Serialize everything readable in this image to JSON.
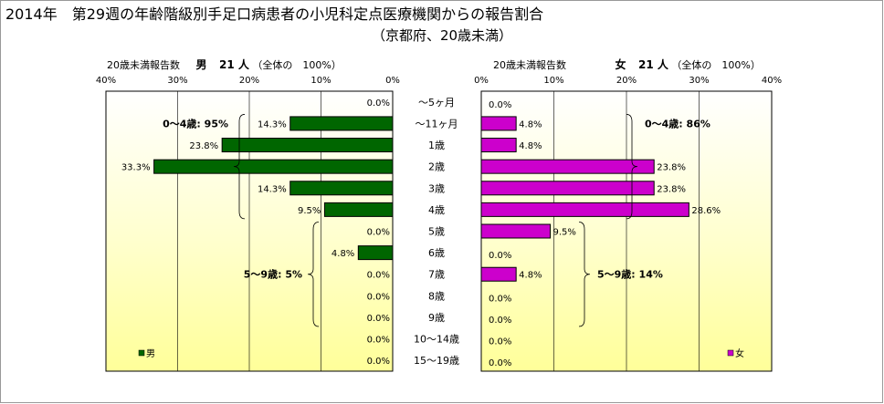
{
  "title": "2014年　第29週の年齢階級別手足口病患者の小児科定点医療機関からの報告割合",
  "subtitle": "（京都府、20歳未満）",
  "colors": {
    "male": "#006600",
    "female": "#cc00cc"
  },
  "left_panel": {
    "header_label": "20歳未満報告数",
    "sex": "男",
    "count_text": "21 人",
    "total_text": "（全体の　100%）"
  },
  "right_panel": {
    "header_label": "20歳未満報告数",
    "sex": "女",
    "count_text": "21 人",
    "total_text": "（全体の　100%）"
  },
  "chart_data": [
    {
      "type": "bar",
      "orientation": "horizontal",
      "direction": "right-to-left",
      "categories": [
        "～5ヶ月",
        "～11ヶ月",
        "1歳",
        "2歳",
        "3歳",
        "4歳",
        "5歳",
        "6歳",
        "7歳",
        "8歳",
        "9歳",
        "10～14歳",
        "15～19歳"
      ],
      "series": [
        {
          "name": "男",
          "values": [
            0.0,
            14.3,
            23.8,
            33.3,
            14.3,
            9.5,
            0.0,
            4.8,
            0.0,
            0.0,
            0.0,
            0.0,
            0.0
          ]
        }
      ],
      "value_labels": [
        "0.0%",
        "14.3%",
        "23.8%",
        "33.3%",
        "14.3%",
        "9.5%",
        "0.0%",
        "4.8%",
        "0.0%",
        "0.0%",
        "0.0%",
        "0.0%",
        "0.0%"
      ],
      "xlim": [
        0,
        40
      ],
      "tick_labels": [
        "40%",
        "30%",
        "20%",
        "10%",
        "0%"
      ],
      "grid": true,
      "legend": {
        "position": "bottom-left",
        "label": "男"
      },
      "annotations": [
        {
          "text": "0～4歳: 95%",
          "bracket_rows": [
            1,
            5
          ]
        },
        {
          "text": "5～9歳: 5%",
          "bracket_rows": [
            6,
            10
          ]
        }
      ]
    },
    {
      "type": "bar",
      "orientation": "horizontal",
      "direction": "left-to-right",
      "categories": [
        "～5ヶ月",
        "～11ヶ月",
        "1歳",
        "2歳",
        "3歳",
        "4歳",
        "5歳",
        "6歳",
        "7歳",
        "8歳",
        "9歳",
        "10～14歳",
        "15～19歳"
      ],
      "series": [
        {
          "name": "女",
          "values": [
            0.0,
            4.8,
            4.8,
            23.8,
            23.8,
            28.6,
            9.5,
            0.0,
            4.8,
            0.0,
            0.0,
            0.0,
            0.0
          ]
        }
      ],
      "value_labels": [
        "0.0%",
        "4.8%",
        "4.8%",
        "23.8%",
        "23.8%",
        "28.6%",
        "9.5%",
        "0.0%",
        "4.8%",
        "0.0%",
        "0.0%",
        "0.0%",
        "0.0%"
      ],
      "xlim": [
        0,
        40
      ],
      "tick_labels": [
        "0%",
        "10%",
        "20%",
        "30%",
        "40%"
      ],
      "grid": true,
      "legend": {
        "position": "bottom-right",
        "label": "女"
      },
      "annotations": [
        {
          "text": "0～4歳: 86%",
          "bracket_rows": [
            1,
            5
          ]
        },
        {
          "text": "5～9歳: 14%",
          "bracket_rows": [
            6,
            10
          ]
        }
      ]
    }
  ]
}
